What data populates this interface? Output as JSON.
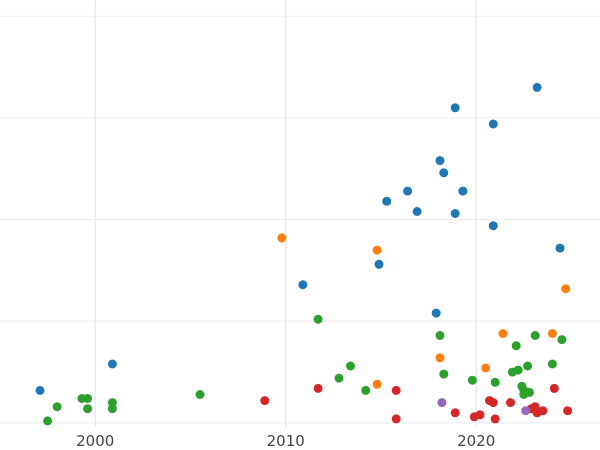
{
  "chart_data": {
    "type": "scatter",
    "title": "",
    "xlabel": "",
    "ylabel": "",
    "xlim": [
      1995,
      2026.5
    ],
    "ylim": [
      -0.2,
      20.8
    ],
    "grid": true,
    "legend": "none",
    "x_ticks": [
      {
        "value": 2000,
        "label": "2000"
      },
      {
        "value": 2010,
        "label": "2010"
      },
      {
        "value": 2020,
        "label": "2020"
      }
    ],
    "y_gridlines": [
      0,
      5,
      10,
      15,
      20
    ],
    "series": [
      {
        "color": "#1f77b4",
        "points": [
          [
            1997.1,
            1.6
          ],
          [
            2000.9,
            2.9
          ],
          [
            2010.9,
            6.8
          ],
          [
            2014.9,
            7.8
          ],
          [
            2015.3,
            10.9
          ],
          [
            2016.4,
            11.4
          ],
          [
            2016.9,
            10.4
          ],
          [
            2017.9,
            5.4
          ],
          [
            2018.1,
            12.9
          ],
          [
            2018.3,
            12.3
          ],
          [
            2018.9,
            10.3
          ],
          [
            2018.9,
            15.5
          ],
          [
            2019.3,
            11.4
          ],
          [
            2020.9,
            9.7
          ],
          [
            2020.9,
            14.7
          ],
          [
            2023.2,
            16.5
          ],
          [
            2024.4,
            8.6
          ]
        ]
      },
      {
        "color": "#ff7f0e",
        "points": [
          [
            2009.8,
            9.1
          ],
          [
            2014.8,
            8.5
          ],
          [
            2014.8,
            1.9
          ],
          [
            2018.1,
            3.2
          ],
          [
            2020.5,
            2.7
          ],
          [
            2021.4,
            4.4
          ],
          [
            2024.0,
            4.4
          ],
          [
            2024.7,
            6.6
          ]
        ]
      },
      {
        "color": "#2ca02c",
        "points": [
          [
            1997.5,
            0.1
          ],
          [
            1998.0,
            0.8
          ],
          [
            1999.3,
            1.2
          ],
          [
            1999.6,
            1.2
          ],
          [
            1999.6,
            0.7
          ],
          [
            2000.9,
            1.0
          ],
          [
            2000.9,
            0.7
          ],
          [
            2005.5,
            1.4
          ],
          [
            2011.7,
            5.1
          ],
          [
            2012.8,
            2.2
          ],
          [
            2013.4,
            2.8
          ],
          [
            2014.2,
            1.6
          ],
          [
            2018.1,
            4.3
          ],
          [
            2018.3,
            2.4
          ],
          [
            2019.8,
            2.1
          ],
          [
            2021.0,
            2.0
          ],
          [
            2021.9,
            2.5
          ],
          [
            2022.1,
            3.8
          ],
          [
            2022.2,
            2.6
          ],
          [
            2022.4,
            1.8
          ],
          [
            2022.5,
            1.6
          ],
          [
            2022.5,
            1.4
          ],
          [
            2022.7,
            2.8
          ],
          [
            2022.8,
            1.5
          ],
          [
            2023.1,
            4.3
          ],
          [
            2024.0,
            2.9
          ],
          [
            2024.5,
            4.1
          ]
        ]
      },
      {
        "color": "#d62728",
        "points": [
          [
            2008.9,
            1.1
          ],
          [
            2011.7,
            1.7
          ],
          [
            2015.8,
            1.6
          ],
          [
            2015.8,
            0.2
          ],
          [
            2018.9,
            0.5
          ],
          [
            2019.9,
            0.3
          ],
          [
            2020.2,
            0.4
          ],
          [
            2020.7,
            1.1
          ],
          [
            2020.9,
            1.0
          ],
          [
            2021.0,
            0.2
          ],
          [
            2021.8,
            1.0
          ],
          [
            2022.9,
            0.7
          ],
          [
            2023.1,
            0.8
          ],
          [
            2023.2,
            0.5
          ],
          [
            2023.5,
            0.6
          ],
          [
            2024.1,
            1.7
          ],
          [
            2024.8,
            0.6
          ]
        ]
      },
      {
        "color": "#9467bd",
        "points": [
          [
            2018.2,
            1.0
          ],
          [
            2022.6,
            0.6
          ]
        ]
      }
    ]
  }
}
